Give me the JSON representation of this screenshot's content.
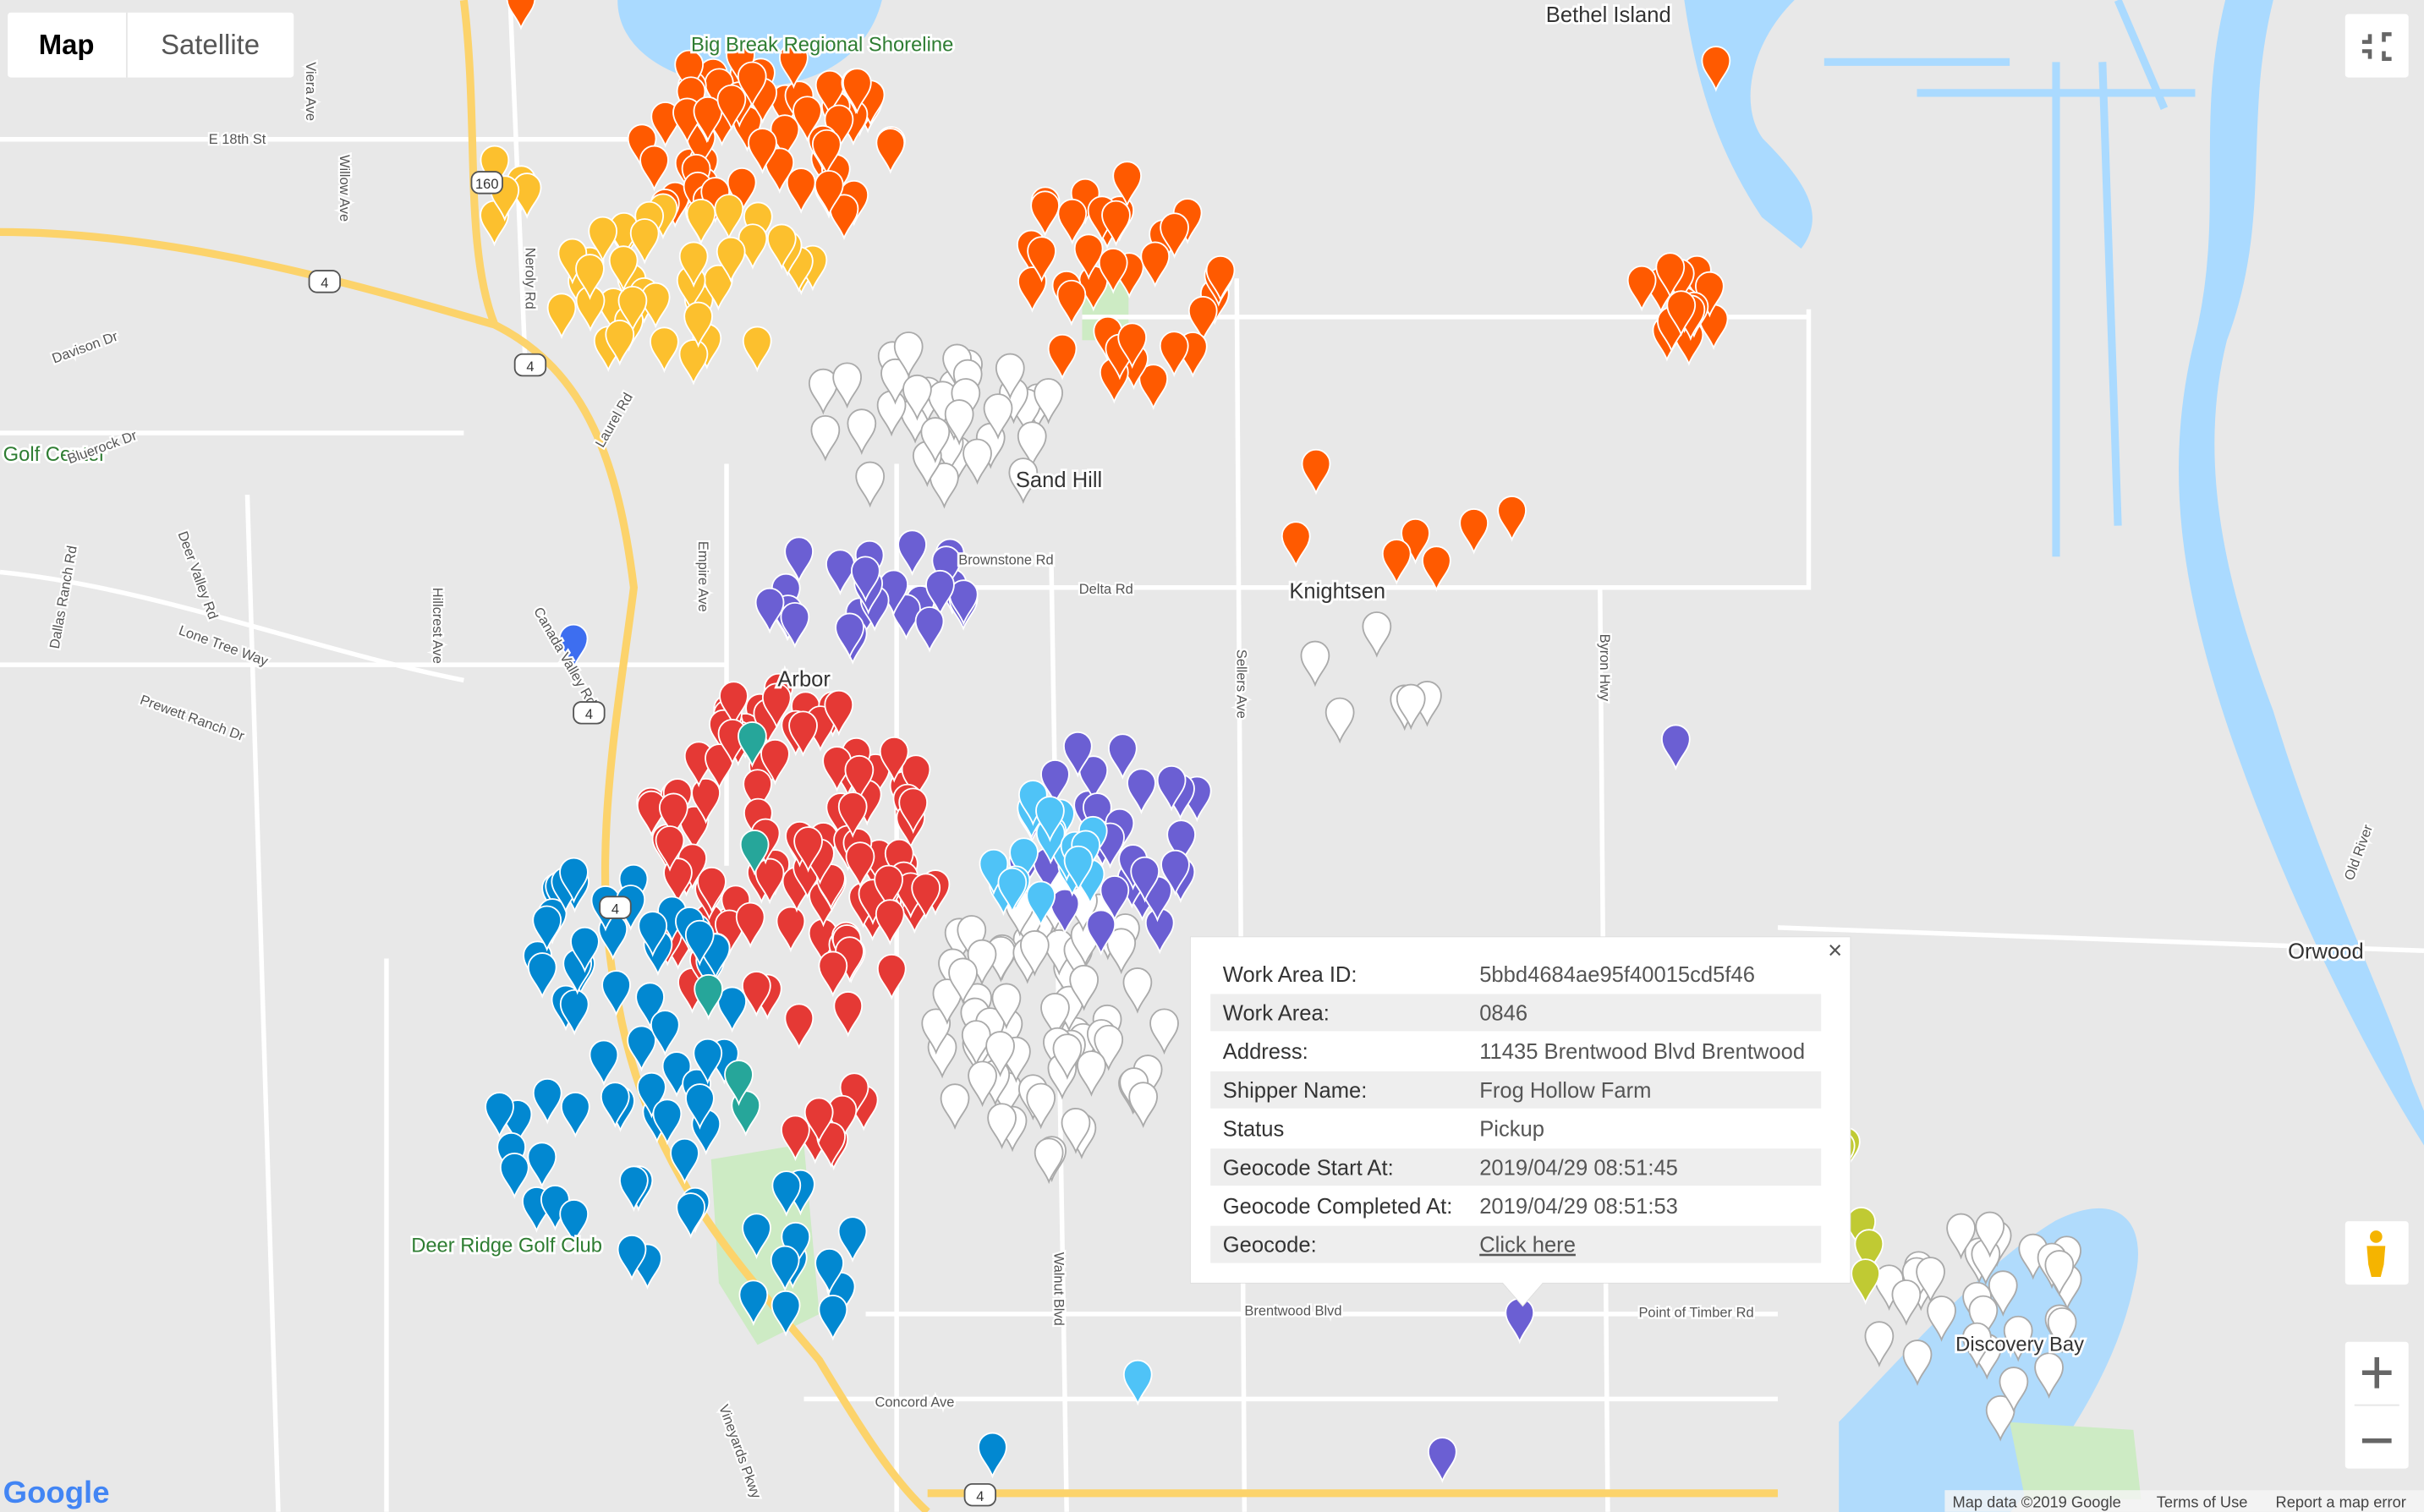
{
  "controls": {
    "map_button": "Map",
    "satellite_button": "Satellite"
  },
  "map": {
    "places": [
      "Bethel Island",
      "Knightsen",
      "Sand Hill",
      "Orwood",
      "Arbor",
      "Big Break Regional Shoreline",
      "Deer Ridge Golf Club",
      "Discovery Bay",
      "Golf Center",
      "Brownstone Rd"
    ],
    "roads": [
      "E 18th St",
      "Neroly Rd",
      "Laurel Rd",
      "Empire Ave",
      "Hillcrest Ave",
      "Davison Dr",
      "Bluerock Dr",
      "Deer Valley Rd",
      "Lone Tree Way",
      "Dallas Ranch Rd",
      "Prewett Ranch Dr",
      "Canada Valley Rd",
      "Delta Rd",
      "Sellers Ave",
      "Byron Hwy",
      "Walnut Blvd",
      "Brentwood Blvd",
      "Point of Timber Rd",
      "Concord Ave",
      "Vineyards Pkwy",
      "Viera Ave",
      "Willow Ave",
      "Old River"
    ],
    "shields": [
      "160",
      "4",
      "4",
      "4",
      "4",
      "4"
    ]
  },
  "info_window": {
    "rows": [
      [
        "Work Area ID:",
        "5bbd4684ae95f40015cd5f46"
      ],
      [
        "Work Area:",
        "0846"
      ],
      [
        "Address:",
        "11435 Brentwood Blvd Brentwood"
      ],
      [
        "Shipper Name:",
        "Frog Hollow Farm"
      ],
      [
        "Status",
        "Pickup"
      ],
      [
        "Geocode Start At:",
        "2019/04/29 08:51:45"
      ],
      [
        "Geocode Completed At:",
        "2019/04/29 08:51:53"
      ],
      [
        "Geocode:",
        "Click here"
      ]
    ],
    "close": "×"
  },
  "footer": {
    "logo": "Google",
    "attribution": "Map data ©2019 Google",
    "terms": "Terms of Use",
    "report": "Report a map error"
  }
}
